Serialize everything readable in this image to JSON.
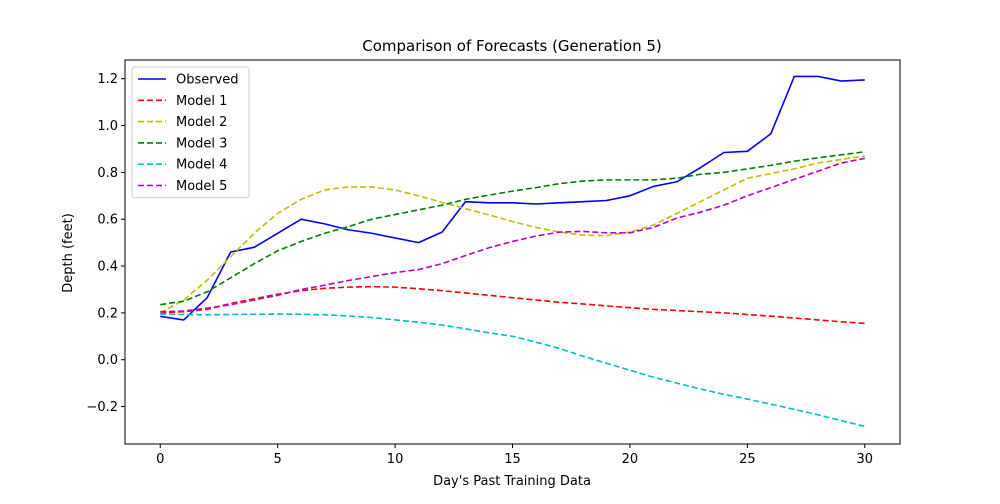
{
  "chart_data": {
    "type": "line",
    "title": "Comparison of Forecasts (Generation 5)",
    "xlabel": "Day's Past Training Data",
    "ylabel": "Depth (feet)",
    "xlim": [
      -1.5,
      31.5
    ],
    "ylim": [
      -0.36,
      1.28
    ],
    "xticks": [
      0,
      5,
      10,
      15,
      20,
      25,
      30
    ],
    "xtick_labels": [
      "0",
      "5",
      "10",
      "15",
      "20",
      "25",
      "30"
    ],
    "yticks": [
      -0.2,
      0.0,
      0.2,
      0.4,
      0.6,
      0.8,
      1.0,
      1.2
    ],
    "ytick_labels": [
      "−0.2",
      "0.0",
      "0.2",
      "0.4",
      "0.6",
      "0.8",
      "1.0",
      "1.2"
    ],
    "grid": false,
    "legend_position": "top-left",
    "x": [
      0,
      1,
      2,
      3,
      4,
      5,
      6,
      7,
      8,
      9,
      10,
      11,
      12,
      13,
      14,
      15,
      16,
      17,
      18,
      19,
      20,
      21,
      22,
      23,
      24,
      25,
      26,
      27,
      28,
      29,
      30
    ],
    "series": [
      {
        "name": "Observed",
        "color": "#0000ff",
        "style": "solid",
        "values": [
          0.185,
          0.17,
          0.265,
          0.46,
          0.48,
          0.54,
          0.6,
          0.58,
          0.555,
          0.54,
          0.52,
          0.5,
          0.545,
          0.675,
          0.67,
          0.67,
          0.665,
          0.67,
          0.675,
          0.68,
          0.7,
          0.74,
          0.76,
          0.82,
          0.885,
          0.89,
          0.965,
          1.21,
          1.21,
          1.19,
          1.195
        ]
      },
      {
        "name": "Model 1",
        "color": "#ff0000",
        "style": "dashed",
        "values": [
          0.2,
          0.205,
          0.215,
          0.24,
          0.26,
          0.28,
          0.295,
          0.305,
          0.31,
          0.312,
          0.31,
          0.303,
          0.295,
          0.285,
          0.275,
          0.265,
          0.255,
          0.245,
          0.238,
          0.23,
          0.222,
          0.215,
          0.21,
          0.205,
          0.2,
          0.193,
          0.186,
          0.178,
          0.17,
          0.162,
          0.155
        ]
      },
      {
        "name": "Model 2",
        "color": "#bfbf00",
        "style": "dashed",
        "values": [
          0.2,
          0.255,
          0.34,
          0.44,
          0.54,
          0.625,
          0.685,
          0.725,
          0.738,
          0.738,
          0.725,
          0.7,
          0.672,
          0.645,
          0.618,
          0.59,
          0.565,
          0.545,
          0.532,
          0.53,
          0.545,
          0.575,
          0.625,
          0.675,
          0.725,
          0.775,
          0.795,
          0.815,
          0.84,
          0.855,
          0.87
        ]
      },
      {
        "name": "Model 3",
        "color": "#008000",
        "style": "dashed",
        "values": [
          0.235,
          0.25,
          0.29,
          0.35,
          0.41,
          0.465,
          0.505,
          0.54,
          0.568,
          0.6,
          0.62,
          0.64,
          0.66,
          0.685,
          0.703,
          0.72,
          0.735,
          0.752,
          0.763,
          0.768,
          0.768,
          0.768,
          0.775,
          0.792,
          0.8,
          0.815,
          0.83,
          0.848,
          0.862,
          0.875,
          0.888
        ]
      },
      {
        "name": "Model 4",
        "color": "#00bfbf",
        "style": "dashed",
        "values": [
          0.195,
          0.193,
          0.192,
          0.193,
          0.194,
          0.195,
          0.194,
          0.192,
          0.187,
          0.18,
          0.17,
          0.16,
          0.148,
          0.132,
          0.115,
          0.1,
          0.075,
          0.048,
          0.015,
          -0.015,
          -0.045,
          -0.075,
          -0.1,
          -0.125,
          -0.148,
          -0.168,
          -0.19,
          -0.212,
          -0.235,
          -0.26,
          -0.285
        ]
      },
      {
        "name": "Model 5",
        "color": "#bf00bf",
        "style": "dashed",
        "values": [
          0.205,
          0.208,
          0.22,
          0.235,
          0.255,
          0.275,
          0.3,
          0.318,
          0.338,
          0.355,
          0.372,
          0.385,
          0.41,
          0.445,
          0.478,
          0.505,
          0.528,
          0.545,
          0.548,
          0.542,
          0.542,
          0.565,
          0.605,
          0.63,
          0.66,
          0.7,
          0.735,
          0.77,
          0.805,
          0.84,
          0.86
        ]
      }
    ]
  }
}
